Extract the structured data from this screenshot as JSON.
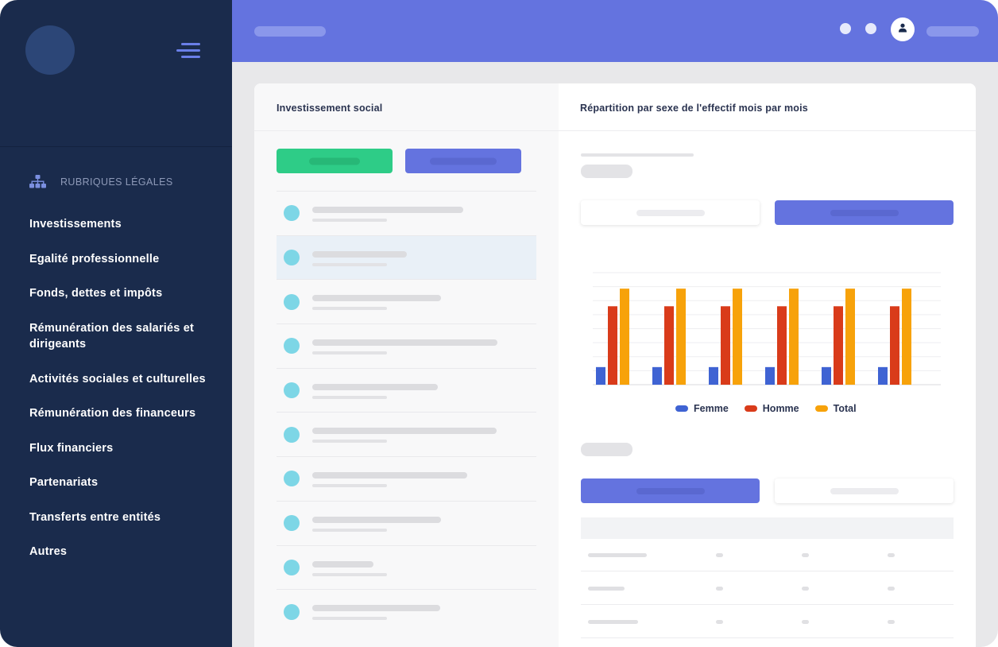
{
  "sidebar": {
    "section_label": "RUBRIQUES LÉGALES",
    "section_icon": "sitemap-icon",
    "items": [
      {
        "label": "Investissements"
      },
      {
        "label": "Egalité professionnelle"
      },
      {
        "label": "Fonds, dettes et impôts"
      },
      {
        "label": "Rémunération des salariés et dirigeants"
      },
      {
        "label": "Activités sociales et culturelles"
      },
      {
        "label": "Rémunération des financeurs"
      },
      {
        "label": "Flux financiers"
      },
      {
        "label": "Partenariats"
      },
      {
        "label": "Transferts entre entités"
      },
      {
        "label": "Autres"
      }
    ]
  },
  "header": {
    "avatar_icon": "user-icon"
  },
  "left_panel": {
    "title": "Investissement social"
  },
  "right_panel": {
    "title": "Répartition par sexe de l'effectif mois par mois"
  },
  "colors": {
    "sidebar_bg": "#1a2b4c",
    "header_bg": "#6473df",
    "green_button": "#2ecc87",
    "blue_button": "#6473df",
    "list_dot": "#7dd6e6",
    "femme": "#3f63d3",
    "homme": "#d93b1a",
    "total": "#f7a20a"
  },
  "chart_data": {
    "type": "bar",
    "categories": [
      "",
      "",
      "",
      "",
      "",
      ""
    ],
    "series": [
      {
        "name": "Femme",
        "values": [
          11,
          11,
          11,
          11,
          11,
          11
        ]
      },
      {
        "name": "Homme",
        "values": [
          49,
          49,
          49,
          49,
          49,
          49
        ]
      },
      {
        "name": "Total",
        "values": [
          60,
          60,
          60,
          60,
          60,
          60
        ]
      }
    ],
    "ylim": [
      0,
      70
    ],
    "grid": true,
    "legend": "bottom"
  }
}
